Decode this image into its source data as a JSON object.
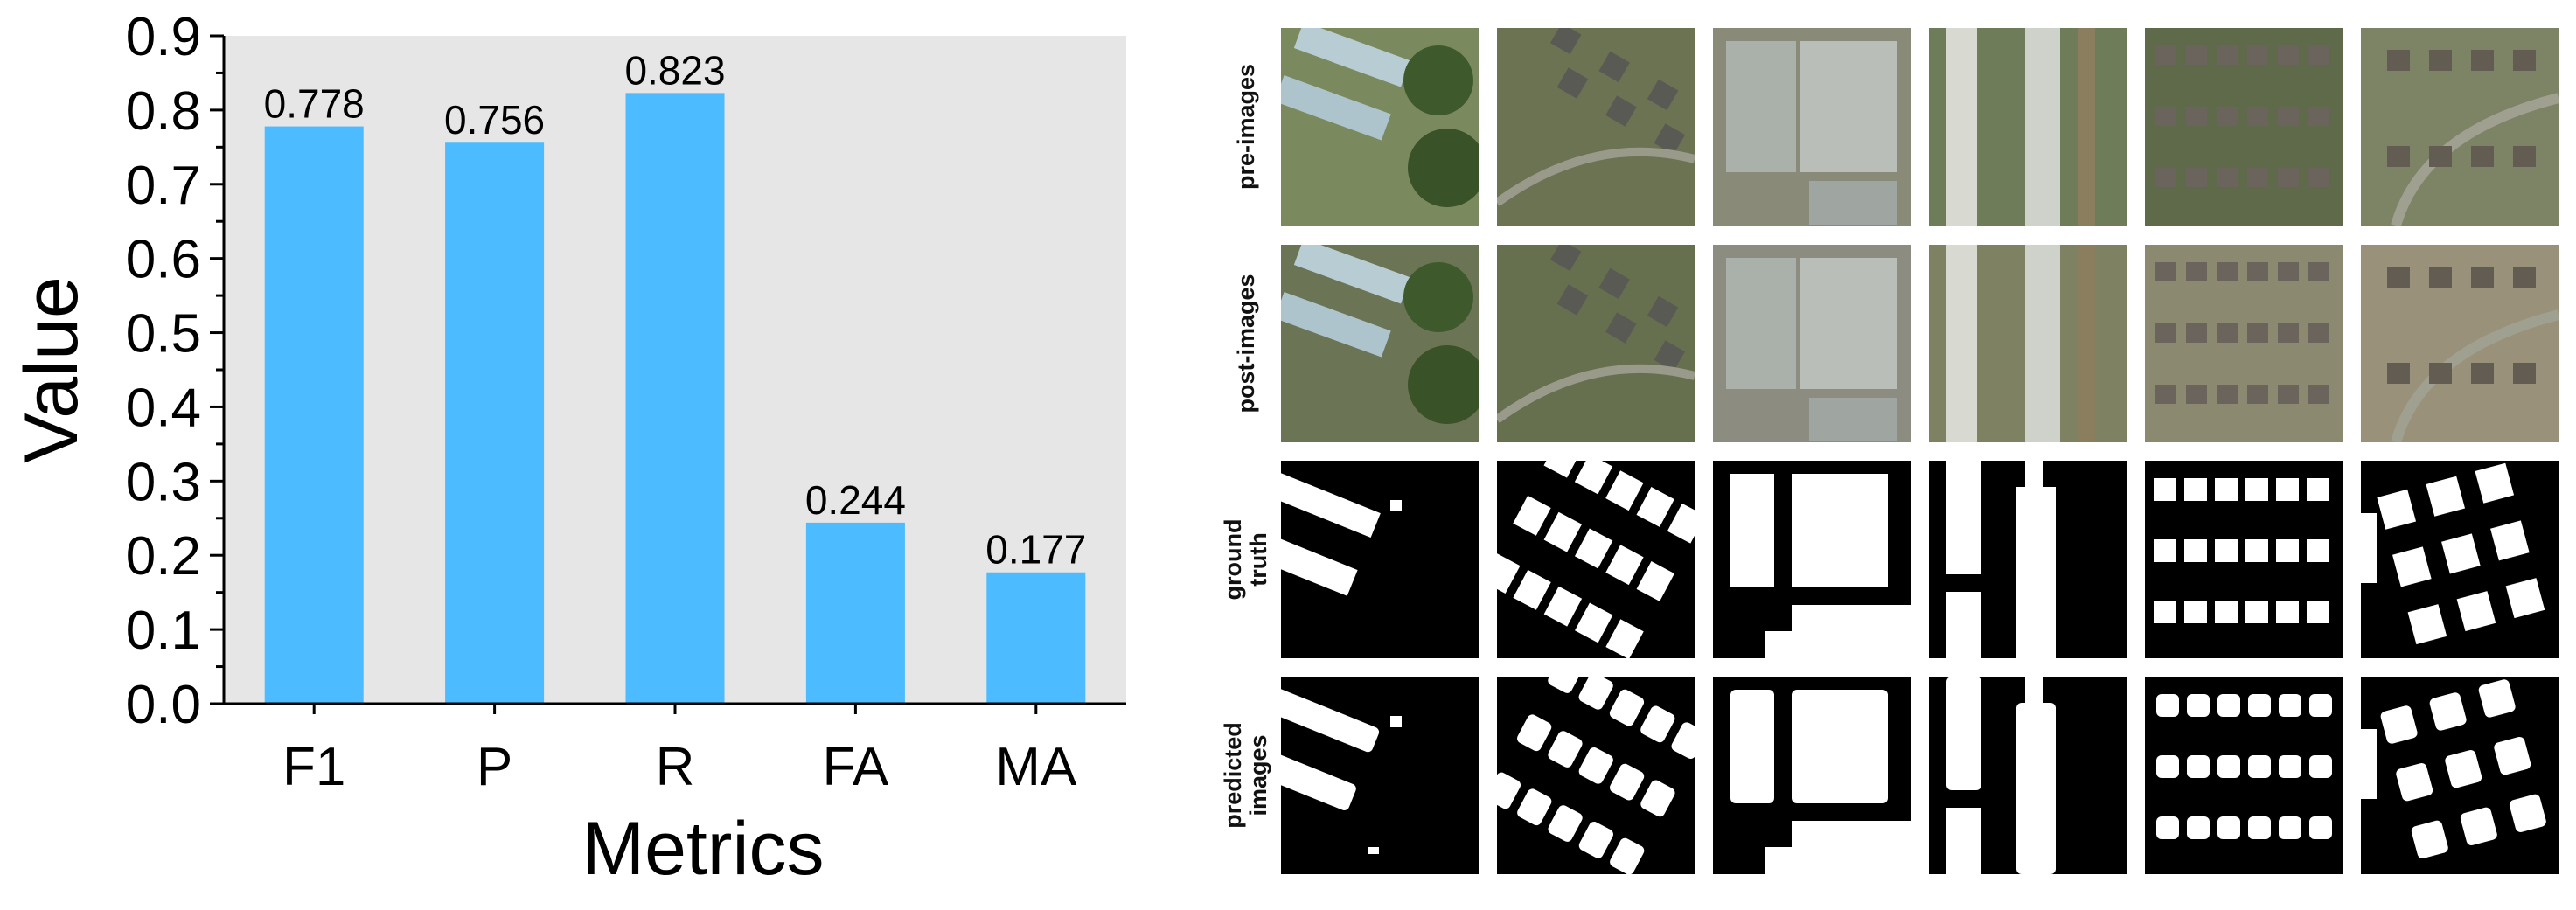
{
  "chart_data": {
    "type": "bar",
    "categories": [
      "F1",
      "P",
      "R",
      "FA",
      "MA"
    ],
    "values": [
      0.778,
      0.756,
      0.823,
      0.244,
      0.177
    ],
    "value_labels": [
      "0.778",
      "0.756",
      "0.823",
      "0.244",
      "0.177"
    ],
    "title": "",
    "xlabel": "Metrics",
    "ylabel": "Value",
    "ylim": [
      0,
      0.9
    ],
    "yticks": [
      "0.0",
      "0.1",
      "0.2",
      "0.3",
      "0.4",
      "0.5",
      "0.6",
      "0.7",
      "0.8",
      "0.9"
    ],
    "grid": false,
    "bar_color": "#4cbbff",
    "plot_background": "#e6e6e6"
  },
  "image_grid": {
    "row_labels": [
      {
        "lines": [
          "pre-images"
        ]
      },
      {
        "lines": [
          "post-images"
        ]
      },
      {
        "lines": [
          "ground",
          "truth"
        ]
      },
      {
        "lines": [
          "predicted",
          "images"
        ]
      }
    ],
    "columns": 6
  }
}
